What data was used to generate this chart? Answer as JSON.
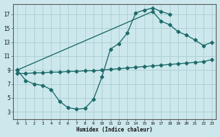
{
  "title": "",
  "xlabel": "Humidex (Indice chaleur)",
  "bg_color": "#cce8ec",
  "grid_color": "#afd0d4",
  "line_color": "#1e6b6b",
  "xlim": [
    -0.5,
    23.5
  ],
  "ylim": [
    2.0,
    18.5
  ],
  "xticks": [
    0,
    1,
    2,
    3,
    4,
    5,
    6,
    7,
    8,
    9,
    10,
    11,
    12,
    13,
    14,
    15,
    16,
    17,
    18,
    19,
    20,
    21,
    22,
    23
  ],
  "yticks": [
    3,
    5,
    7,
    9,
    11,
    13,
    15,
    17
  ],
  "curve1_x": [
    0,
    1,
    2,
    3,
    4,
    5,
    6,
    7,
    8,
    9,
    10,
    11,
    12,
    13,
    14,
    15,
    16,
    17,
    18
  ],
  "curve1_y": [
    9.0,
    7.5,
    7.0,
    6.8,
    6.2,
    4.5,
    3.6,
    3.4,
    3.5,
    4.8,
    8.0,
    12.0,
    12.8,
    14.3,
    17.2,
    17.6,
    17.9,
    17.4,
    17.0
  ],
  "curve2_x": [
    0,
    16,
    17,
    18,
    19,
    20,
    21,
    22,
    23
  ],
  "curve2_y": [
    9.0,
    17.4,
    16.0,
    15.5,
    14.5,
    14.0,
    13.3,
    12.5,
    13.0
  ],
  "curve3_x": [
    0,
    1,
    2,
    3,
    4,
    5,
    6,
    7,
    8,
    9,
    10,
    11,
    12,
    13,
    14,
    15,
    16,
    17,
    18,
    19,
    20,
    21,
    22,
    23
  ],
  "curve3_y": [
    8.5,
    8.5,
    8.6,
    8.6,
    8.7,
    8.7,
    8.8,
    8.8,
    8.9,
    8.9,
    9.0,
    9.1,
    9.2,
    9.3,
    9.4,
    9.5,
    9.6,
    9.7,
    9.8,
    9.9,
    10.0,
    10.1,
    10.2,
    10.5
  ]
}
